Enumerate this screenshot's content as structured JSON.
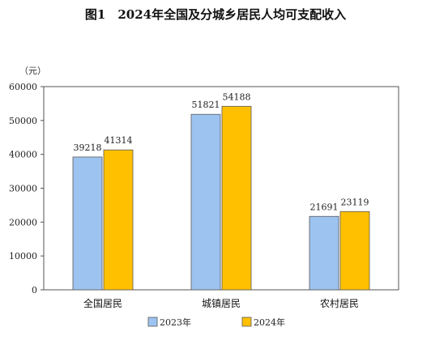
{
  "chart_data": {
    "type": "bar",
    "title": "图1　2024年全国及分城乡居民人均可支配收入",
    "unit": "（元）",
    "categories": [
      "全国居民",
      "城镇居民",
      "农村居民"
    ],
    "series": [
      {
        "name": "2023年",
        "values": [
          39218,
          51821,
          21691
        ],
        "color": "#9DC3F0"
      },
      {
        "name": "2024年",
        "values": [
          41314,
          54188,
          23119
        ],
        "color": "#FFC000"
      }
    ],
    "ylim": [
      0,
      60000
    ],
    "yticks": [
      0,
      10000,
      20000,
      30000,
      40000,
      50000,
      60000
    ],
    "grid": false,
    "legend_position": "bottom"
  }
}
